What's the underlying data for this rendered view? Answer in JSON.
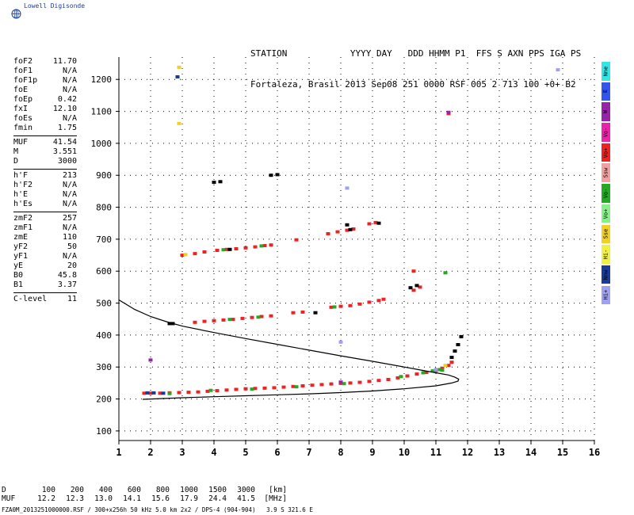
{
  "logo": {
    "text": "Lowell Digisonde",
    "icon": "globe-icon"
  },
  "header": {
    "line1": "STATION            YYYY DAY   DDD HHMM P1  FFS S AXN PPS IGA PS",
    "line2": "Fortaleza, Brasil 2013 Sep08 251 0000 RSF 005 2 713 100 +0+ B2"
  },
  "params": {
    "group1": [
      {
        "name": "foF2",
        "value": "11.70"
      },
      {
        "name": "foF1",
        "value": "N/A"
      },
      {
        "name": "foF1p",
        "value": "N/A"
      },
      {
        "name": "foE",
        "value": "N/A"
      },
      {
        "name": "foEp",
        "value": "0.42"
      },
      {
        "name": "fxI",
        "value": "12.10"
      },
      {
        "name": "foEs",
        "value": "N/A"
      },
      {
        "name": "fmin",
        "value": "1.75"
      }
    ],
    "group2": [
      {
        "name": "MUF",
        "value": "41.54"
      },
      {
        "name": "M",
        "value": "3.551"
      },
      {
        "name": "D",
        "value": "3000"
      }
    ],
    "group3": [
      {
        "name": "h'F",
        "value": "213"
      },
      {
        "name": "h'F2",
        "value": "N/A"
      },
      {
        "name": "h'E",
        "value": "N/A"
      },
      {
        "name": "h'Es",
        "value": "N/A"
      }
    ],
    "group4": [
      {
        "name": "zmF2",
        "value": "257"
      },
      {
        "name": "zmF1",
        "value": "N/A"
      },
      {
        "name": "zmE",
        "value": "110"
      },
      {
        "name": "yF2",
        "value": "50"
      },
      {
        "name": "yF1",
        "value": "N/A"
      },
      {
        "name": "yE",
        "value": "20"
      },
      {
        "name": "B0",
        "value": "45.8"
      },
      {
        "name": "B1",
        "value": "3.37"
      }
    ],
    "group5": [
      {
        "name": "C-level",
        "value": "11"
      }
    ]
  },
  "legend": [
    {
      "label": "Nne",
      "color": "#33e6e6"
    },
    {
      "label": "E",
      "color": "#3355ee"
    },
    {
      "label": "W",
      "color": "#9922aa"
    },
    {
      "label": "Vo-",
      "color": "#ee22aa"
    },
    {
      "label": "Vo+",
      "color": "#ee2222"
    },
    {
      "label": "Ssw",
      "color": "#f0a0a0"
    },
    {
      "label": "Vo-",
      "color": "#22aa22"
    },
    {
      "label": "Vo+",
      "color": "#88ee88"
    },
    {
      "label": "Sse",
      "color": "#f0d020"
    },
    {
      "label": "Hi-",
      "color": "#f0f040"
    },
    {
      "label": "Nnw",
      "color": "#1a3a99"
    },
    {
      "label": "Hi+",
      "color": "#a0a0f0"
    }
  ],
  "footer": {
    "d_label": "D",
    "d_values": [
      "100",
      "200",
      "400",
      "600",
      "800",
      "1000",
      "1500",
      "3000",
      "[km]"
    ],
    "muf_label": "MUF",
    "muf_values": [
      "12.2",
      "12.3",
      "13.0",
      "14.1",
      "15.6",
      "17.9",
      "24.4",
      "41.5",
      "[MHz]"
    ],
    "file_line": "FZA0M_2013251000000.RSF / 300+x256h 50 kHz 5.0 km 2x2 / DPS-4 (904-904)   3.9 S 321.6 E"
  },
  "chart_data": {
    "type": "scatter",
    "title": "",
    "xlabel": "",
    "ylabel": "",
    "xlim": [
      1,
      16
    ],
    "ylim": [
      70,
      1270
    ],
    "x_ticks": [
      1,
      2,
      3,
      4,
      5,
      6,
      7,
      8,
      9,
      10,
      11,
      12,
      13,
      14,
      15,
      16
    ],
    "y_ticks": [
      100,
      200,
      300,
      400,
      500,
      600,
      700,
      800,
      900,
      1000,
      1100,
      1200
    ],
    "grid": true,
    "series": [
      {
        "color": "#ee2222",
        "points": [
          [
            1.8,
            218
          ],
          [
            2.0,
            218
          ],
          [
            2.3,
            218
          ],
          [
            2.6,
            219
          ],
          [
            2.9,
            220
          ],
          [
            3.2,
            221
          ],
          [
            3.5,
            222
          ],
          [
            3.8,
            224
          ],
          [
            4.1,
            226
          ],
          [
            4.4,
            228
          ],
          [
            4.7,
            230
          ],
          [
            5.0,
            232
          ],
          [
            5.3,
            233
          ],
          [
            5.6,
            234
          ],
          [
            5.9,
            235
          ],
          [
            6.2,
            237
          ],
          [
            6.5,
            239
          ],
          [
            6.8,
            241
          ],
          [
            7.1,
            243
          ],
          [
            7.4,
            245
          ],
          [
            7.7,
            247
          ],
          [
            8.0,
            249
          ],
          [
            8.3,
            250
          ],
          [
            8.6,
            252
          ],
          [
            8.9,
            255
          ],
          [
            9.2,
            258
          ],
          [
            9.5,
            261
          ],
          [
            9.8,
            266
          ],
          [
            10.1,
            272
          ],
          [
            10.4,
            278
          ],
          [
            10.7,
            283
          ],
          [
            11.0,
            289
          ],
          [
            11.2,
            296
          ],
          [
            11.4,
            305
          ],
          [
            11.5,
            315
          ],
          [
            3.4,
            440
          ],
          [
            3.7,
            443
          ],
          [
            4.0,
            445
          ],
          [
            4.3,
            447
          ],
          [
            4.6,
            449
          ],
          [
            4.9,
            452
          ],
          [
            5.2,
            455
          ],
          [
            5.5,
            458
          ],
          [
            5.8,
            460
          ],
          [
            6.5,
            470
          ],
          [
            6.8,
            472
          ],
          [
            7.7,
            487
          ],
          [
            8.0,
            490
          ],
          [
            8.3,
            492
          ],
          [
            8.6,
            497
          ],
          [
            8.9,
            503
          ],
          [
            9.2,
            508
          ],
          [
            9.35,
            512
          ],
          [
            3.0,
            650
          ],
          [
            3.4,
            655
          ],
          [
            3.7,
            660
          ],
          [
            4.1,
            665
          ],
          [
            4.4,
            668
          ],
          [
            4.7,
            670
          ],
          [
            5.0,
            673
          ],
          [
            5.3,
            676
          ],
          [
            5.6,
            680
          ],
          [
            5.8,
            682
          ],
          [
            7.6,
            717
          ],
          [
            7.9,
            723
          ],
          [
            8.2,
            728
          ],
          [
            8.4,
            732
          ],
          [
            8.9,
            748
          ],
          [
            9.1,
            752
          ],
          [
            6.6,
            698
          ],
          [
            10.3,
            540
          ],
          [
            10.5,
            550
          ],
          [
            10.3,
            600
          ],
          [
            11.4,
            1093
          ]
        ]
      },
      {
        "color": "#22aa22",
        "points": [
          [
            2.6,
            217
          ],
          [
            3.9,
            227
          ],
          [
            5.2,
            231
          ],
          [
            6.6,
            238
          ],
          [
            8.1,
            248
          ],
          [
            9.9,
            270
          ],
          [
            10.6,
            282
          ],
          [
            10.9,
            288
          ],
          [
            11.1,
            292
          ],
          [
            11.2,
            290
          ],
          [
            4.5,
            449
          ],
          [
            5.4,
            456
          ],
          [
            7.8,
            488
          ],
          [
            4.3,
            667
          ],
          [
            5.5,
            679
          ],
          [
            11.3,
            595
          ]
        ]
      },
      {
        "color": "#1a3a99",
        "points": [
          [
            1.9,
            219
          ],
          [
            2.1,
            219
          ],
          [
            2.4,
            218
          ],
          [
            2.85,
            1208
          ]
        ]
      },
      {
        "color": "#9922aa",
        "points": [
          [
            2.0,
            322
          ],
          [
            8.0,
            253
          ],
          [
            11.4,
            1097
          ]
        ]
      },
      {
        "color": "#f0d020",
        "points": [
          [
            2.9,
            1238
          ],
          [
            2.9,
            1062
          ],
          [
            3.1,
            652
          ],
          [
            11.3,
            305
          ]
        ]
      },
      {
        "color": "#a0a0f0",
        "points": [
          [
            14.85,
            1230
          ],
          [
            11.0,
            292
          ],
          [
            8.2,
            860
          ],
          [
            8.0,
            378
          ]
        ]
      },
      {
        "color": "#000000",
        "points": [
          [
            2.6,
            436
          ],
          [
            2.7,
            436
          ],
          [
            4.0,
            878
          ],
          [
            4.2,
            880
          ],
          [
            5.8,
            900
          ],
          [
            6.0,
            902
          ],
          [
            8.2,
            745
          ],
          [
            8.3,
            730
          ],
          [
            9.2,
            750
          ],
          [
            10.2,
            548
          ],
          [
            10.4,
            555
          ],
          [
            11.5,
            330
          ],
          [
            11.6,
            350
          ],
          [
            11.7,
            370
          ],
          [
            11.8,
            395
          ],
          [
            4.5,
            668
          ],
          [
            7.2,
            470
          ]
        ]
      }
    ],
    "profile": [
      [
        1.0,
        510
      ],
      [
        1.5,
        480
      ],
      [
        2.0,
        458
      ],
      [
        2.5,
        442
      ],
      [
        3.0,
        428
      ],
      [
        4.0,
        408
      ],
      [
        5.0,
        389
      ],
      [
        6.0,
        371
      ],
      [
        7.0,
        353
      ],
      [
        8.0,
        335
      ],
      [
        9.0,
        318
      ],
      [
        10.0,
        300
      ],
      [
        10.5,
        291
      ],
      [
        11.0,
        282
      ],
      [
        11.4,
        275
      ],
      [
        11.6,
        268
      ],
      [
        11.72,
        262
      ],
      [
        11.7,
        256
      ],
      [
        11.5,
        250
      ],
      [
        11.0,
        241
      ],
      [
        10.0,
        232
      ],
      [
        9.0,
        225
      ],
      [
        8.0,
        220
      ],
      [
        7.0,
        216
      ],
      [
        6.0,
        213
      ],
      [
        5.0,
        210
      ],
      [
        4.0,
        207
      ],
      [
        3.0,
        204
      ],
      [
        2.0,
        200
      ],
      [
        1.75,
        199
      ]
    ]
  }
}
